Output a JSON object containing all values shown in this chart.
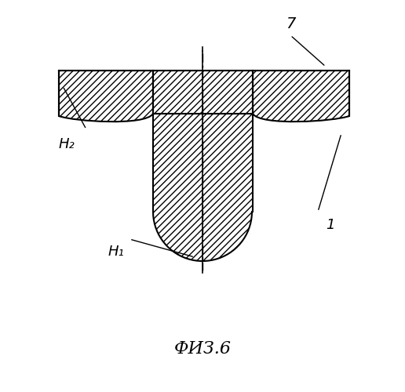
{
  "title": "ФИЗ.6",
  "label_7": "7",
  "label_H2": "H₂",
  "label_H1": "H₁",
  "label_1": "1",
  "bg_color": "#ffffff",
  "line_color": "#000000",
  "hatch_color": "#000000",
  "hatch_pattern": "////",
  "fig_width": 5.16,
  "fig_height": 5.0
}
